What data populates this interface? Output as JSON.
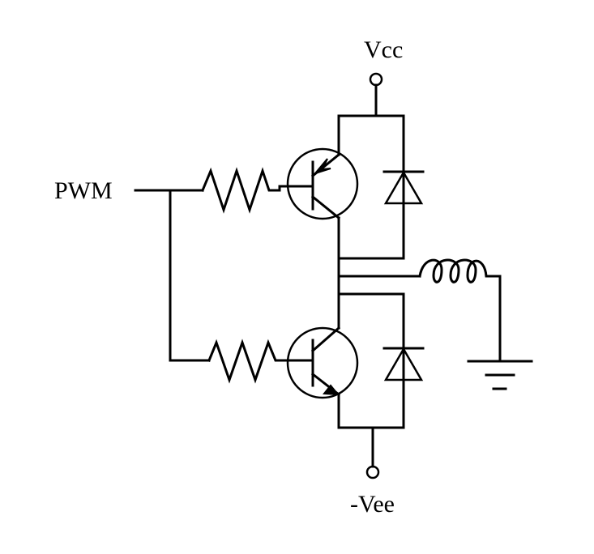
{
  "labels": {
    "vcc": "Vcc",
    "vee": "-Vee",
    "pwm": "PWM"
  }
}
